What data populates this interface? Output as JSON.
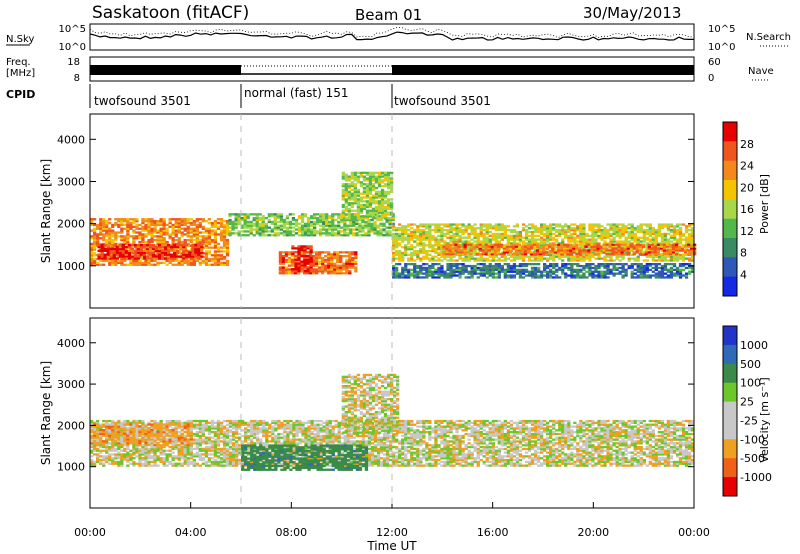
{
  "header": {
    "station": "Saskatoon (fitACF)",
    "beam": "Beam 01",
    "date": "30/May/2013"
  },
  "status_panels": {
    "nsky": {
      "label": "N.Sky",
      "left_ticks": [
        "10^5",
        "10^0"
      ],
      "right_ticks": [
        "10^5",
        "10^0"
      ],
      "right_label": "N.Search"
    },
    "freq": {
      "label_line1": "Freq.",
      "label_line2": "[MHz]",
      "left_ticks": [
        "18",
        "8"
      ],
      "right_ticks": [
        "60",
        "0"
      ],
      "right_label": "Nave"
    },
    "cpid": {
      "label": "CPID",
      "segments": [
        {
          "start": 0,
          "end": 6,
          "name": "twofsound 3501"
        },
        {
          "start": 6,
          "end": 12,
          "name": "normal (fast) 151"
        },
        {
          "start": 12,
          "end": 24,
          "name": "twofsound 3501"
        }
      ]
    }
  },
  "chart_data": [
    {
      "type": "heatmap",
      "quantity": "power",
      "ylabel": "Slant Range [km]",
      "xlim": [
        0,
        24
      ],
      "ylim": [
        0,
        4600
      ],
      "yticks": [
        "1000",
        "2000",
        "3000",
        "4000"
      ],
      "colorbar": {
        "label": "Power [dB]",
        "range": [
          0,
          32
        ],
        "ticks": [
          "4",
          "8",
          "12",
          "16",
          "20",
          "24",
          "28"
        ],
        "colors": [
          "#1428e6",
          "#2f57b8",
          "#3a8a63",
          "#52b84a",
          "#a8d84a",
          "#f5c400",
          "#f2891a",
          "#f0551e",
          "#e60000"
        ]
      },
      "bands": [
        {
          "t": [
            0,
            5.5
          ],
          "r": [
            1000,
            2100
          ],
          "level": 24
        },
        {
          "t": [
            0.3,
            4.5
          ],
          "r": [
            1150,
            1500
          ],
          "level": 30
        },
        {
          "t": [
            5.5,
            12
          ],
          "r": [
            1700,
            2200
          ],
          "level": 14
        },
        {
          "t": [
            7.5,
            10.5
          ],
          "r": [
            800,
            1300
          ],
          "level": 26
        },
        {
          "t": [
            8,
            8.8
          ],
          "r": [
            850,
            1450
          ],
          "level": 31
        },
        {
          "t": [
            10,
            12
          ],
          "r": [
            2100,
            3200
          ],
          "level": 15
        },
        {
          "t": [
            12,
            24
          ],
          "r": [
            1100,
            2000
          ],
          "level": 18
        },
        {
          "t": [
            14,
            24
          ],
          "r": [
            1250,
            1500
          ],
          "level": 26
        },
        {
          "t": [
            12,
            24
          ],
          "r": [
            700,
            1050
          ],
          "level": 6
        }
      ]
    },
    {
      "type": "heatmap",
      "quantity": "velocity",
      "ylabel": "Slant Range [km]",
      "xlabel": "Time UT",
      "xlim": [
        0,
        24
      ],
      "ylim": [
        0,
        4600
      ],
      "xticks": [
        "00:00",
        "04:00",
        "08:00",
        "12:00",
        "16:00",
        "20:00",
        "00:00"
      ],
      "yticks": [
        "1000",
        "2000",
        "3000",
        "4000"
      ],
      "colorbar": {
        "label": "Velocity [m s⁻¹]",
        "ticks": [
          "1000",
          "500",
          "100",
          "25",
          "-25",
          "-100",
          "-500",
          "-1000"
        ],
        "colors": [
          "#2233c8",
          "#2e6ab8",
          "#3a8a4a",
          "#6cc82a",
          "#c8c8c8",
          "#c8c8c8",
          "#f0a020",
          "#f06018",
          "#e60000"
        ]
      },
      "bands": [
        {
          "t": [
            0,
            24
          ],
          "r": [
            1000,
            2100
          ],
          "level": 0
        },
        {
          "t": [
            10,
            12.2
          ],
          "r": [
            1800,
            3200
          ],
          "level": 0
        },
        {
          "t": [
            6,
            11
          ],
          "r": [
            900,
            1500
          ],
          "level": 200
        },
        {
          "t": [
            0,
            4
          ],
          "r": [
            1500,
            2000
          ],
          "level": -60
        }
      ]
    }
  ]
}
